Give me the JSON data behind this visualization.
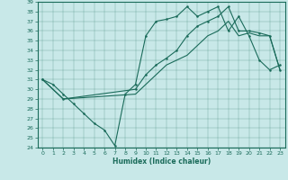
{
  "title": "",
  "xlabel": "Humidex (Indice chaleur)",
  "bg_color": "#c8e8e8",
  "line_color": "#1a6b5a",
  "xlim": [
    -0.5,
    23.5
  ],
  "ylim": [
    24,
    39
  ],
  "xticks": [
    0,
    1,
    2,
    3,
    4,
    5,
    6,
    7,
    8,
    9,
    10,
    11,
    12,
    13,
    14,
    15,
    16,
    17,
    18,
    19,
    20,
    21,
    22,
    23
  ],
  "yticks": [
    24,
    25,
    26,
    27,
    28,
    29,
    30,
    31,
    32,
    33,
    34,
    35,
    36,
    37,
    38,
    39
  ],
  "curve1_x": [
    0,
    1,
    2,
    3,
    4,
    5,
    6,
    7,
    8,
    9,
    10,
    11,
    12,
    13,
    14,
    15,
    16,
    17,
    18,
    19,
    20,
    21,
    22,
    23
  ],
  "curve1_y": [
    31.0,
    30.5,
    29.5,
    28.5,
    27.5,
    26.5,
    25.8,
    24.2,
    29.5,
    30.5,
    35.5,
    37.0,
    37.2,
    37.5,
    38.5,
    37.5,
    38.0,
    38.5,
    36.0,
    37.5,
    35.5,
    33.0,
    32.0,
    32.5
  ],
  "curve2_x": [
    0,
    2,
    9,
    10,
    11,
    12,
    13,
    14,
    15,
    16,
    17,
    18,
    19,
    20,
    21,
    22,
    23
  ],
  "curve2_y": [
    31.0,
    29.0,
    30.0,
    31.5,
    32.5,
    33.2,
    34.0,
    35.5,
    36.5,
    37.0,
    37.5,
    38.5,
    36.0,
    36.0,
    35.8,
    35.5,
    32.0
  ],
  "curve3_x": [
    0,
    2,
    9,
    10,
    11,
    12,
    13,
    14,
    15,
    16,
    17,
    18,
    19,
    20,
    21,
    22,
    23
  ],
  "curve3_y": [
    31.0,
    29.0,
    29.5,
    30.5,
    31.5,
    32.5,
    33.0,
    33.5,
    34.5,
    35.5,
    36.0,
    37.0,
    35.5,
    35.8,
    35.5,
    35.5,
    32.0
  ]
}
